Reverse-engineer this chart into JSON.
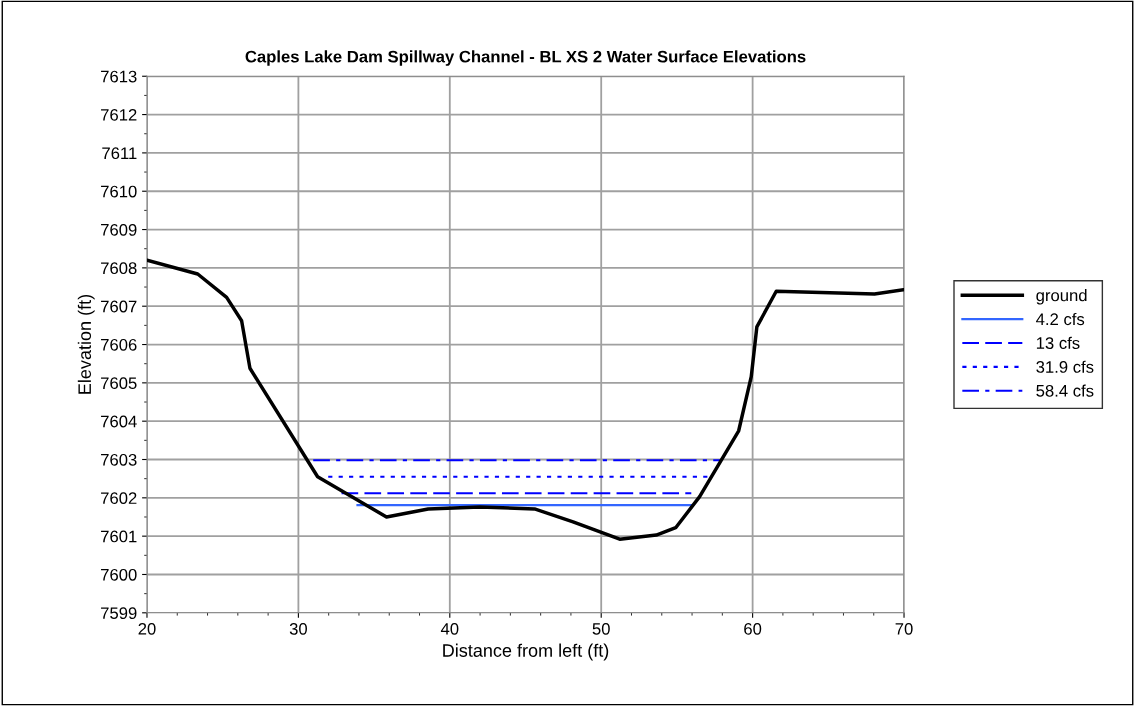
{
  "chart_data": {
    "type": "line",
    "title": "Caples Lake Dam Spillway Channel - BL XS 2 Water Surface Elevations",
    "xlabel": "Distance from left (ft)",
    "ylabel": "Elevation (ft)",
    "series": [
      {
        "name": "ground",
        "color": "#000000",
        "line_style": "solid",
        "x": [
          20,
          23.35,
          25.26,
          26.25,
          26.8,
          31.27,
          35.82,
          38.57,
          41.98,
          45.6,
          48.14,
          51.22,
          53.64,
          54.92,
          56.5,
          59.08,
          59.91,
          60.28,
          61.56,
          68.05,
          70
        ],
        "values": [
          7608.2,
          7607.84,
          7607.23,
          7606.62,
          7605.38,
          7602.55,
          7601.5,
          7601.71,
          7601.76,
          7601.71,
          7601.37,
          7600.92,
          7601.03,
          7601.22,
          7602.03,
          7603.75,
          7605.16,
          7606.46,
          7607.39,
          7607.32,
          7607.43
        ]
      },
      {
        "name": "4.2 cfs",
        "color": "#3366ff",
        "line_style": "solid",
        "x": [
          33.9,
          56.06
        ],
        "values": [
          7601.81,
          7601.81
        ]
      },
      {
        "name": "13 cfs",
        "color": "#0000ff",
        "line_style": "dashed",
        "x": [
          32.85,
          55.95
        ],
        "values": [
          7602.12,
          7602.12
        ]
      },
      {
        "name": "31.9 cfs",
        "color": "#0000ff",
        "line_style": "dotted",
        "x": [
          31.97,
          57.05
        ],
        "values": [
          7602.55,
          7602.55
        ]
      },
      {
        "name": "58.4 cfs",
        "color": "#0000ff",
        "line_style": "dashdot",
        "x": [
          30.98,
          57.97
        ],
        "values": [
          7602.98,
          7602.98
        ]
      }
    ],
    "xlim": [
      20,
      70
    ],
    "xticks": [
      20,
      30,
      40,
      50,
      60,
      70
    ],
    "ylim": [
      7599,
      7613
    ],
    "yticks": [
      7599,
      7600,
      7601,
      7602,
      7603,
      7604,
      7605,
      7606,
      7607,
      7608,
      7609,
      7610,
      7611,
      7612,
      7613
    ],
    "grid": true,
    "legend": "right",
    "marker": "none"
  }
}
